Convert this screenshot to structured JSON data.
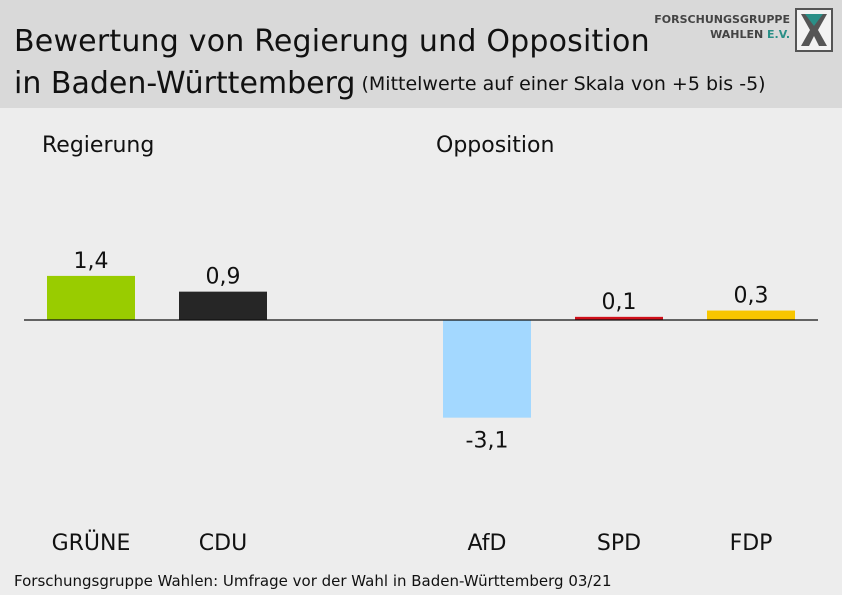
{
  "header": {
    "title_line1": "Bewertung von Regierung und Opposition",
    "title_line2": "in Baden-Württemberg",
    "subtitle": "(Mittelwerte auf einer Skala von +5 bis -5)"
  },
  "logo": {
    "line1": "FORSCHUNGSGRUPPE",
    "line2_main": "WAHLEN",
    "line2_accent": "E.V.",
    "icon": "fgw-x-logo-icon"
  },
  "groups": {
    "government": "Regierung",
    "opposition": "Opposition"
  },
  "footer": {
    "source": "Forschungsgruppe Wahlen: Umfrage vor der Wahl in Baden-Württemberg 03/21"
  },
  "chart_data": {
    "type": "bar",
    "categories": [
      "GRÜNE",
      "CDU",
      "AfD",
      "SPD",
      "FDP"
    ],
    "values": [
      1.4,
      0.9,
      -3.1,
      0.1,
      0.3
    ],
    "value_labels": [
      "1,4",
      "0,9",
      "-3,1",
      "0,1",
      "0,3"
    ],
    "colors": [
      "#99cc00",
      "#262626",
      "#a3d8ff",
      "#d0101a",
      "#f7c600"
    ],
    "groups": [
      "Regierung",
      "Regierung",
      "Opposition",
      "Opposition",
      "Opposition"
    ],
    "ylim": [
      -5,
      5
    ],
    "grid": false
  }
}
